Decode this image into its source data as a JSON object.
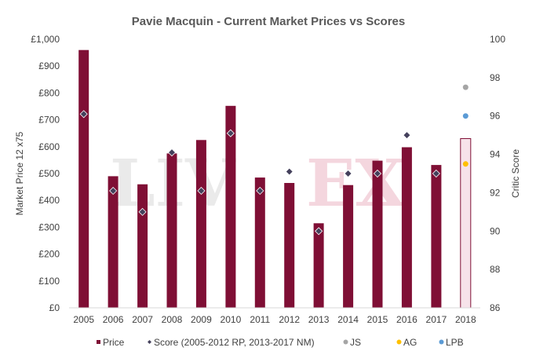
{
  "chart_data": {
    "type": "bar",
    "title": "Pavie Macquin - Current Market Prices vs Scores",
    "watermark": "LIV-EX",
    "categories": [
      "2005",
      "2006",
      "2007",
      "2008",
      "2009",
      "2010",
      "2011",
      "2012",
      "2013",
      "2014",
      "2015",
      "2016",
      "2017",
      "2018"
    ],
    "y_left": {
      "label": "Market Price 12 x75",
      "range": [
        0,
        1000
      ],
      "ticks": [
        "£0",
        "£100",
        "£200",
        "£300",
        "£400",
        "£500",
        "£600",
        "£700",
        "£800",
        "£900",
        "£1,000"
      ],
      "tick_values": [
        0,
        100,
        200,
        300,
        400,
        500,
        600,
        700,
        800,
        900,
        1000
      ]
    },
    "y_right": {
      "label": "Critic Score",
      "range": [
        86,
        100
      ],
      "ticks": [
        "86",
        "88",
        "90",
        "92",
        "94",
        "96",
        "98",
        "100"
      ],
      "tick_values": [
        86,
        88,
        90,
        92,
        94,
        96,
        98,
        100
      ]
    },
    "series": [
      {
        "name": "Price",
        "kind": "bar",
        "axis": "left",
        "color": "#7f0f35",
        "values": [
          960,
          490,
          460,
          575,
          625,
          752,
          485,
          465,
          315,
          457,
          548,
          598,
          532,
          630
        ],
        "highlight_last": {
          "fill": "#f7e3ea",
          "stroke": "#7f0f35"
        }
      },
      {
        "name": "Score (2005-2012 RP, 2013-2017 NM)",
        "kind": "marker",
        "marker": "diamond",
        "axis": "right",
        "color": "#44405c",
        "values": [
          96.1,
          92.1,
          91.0,
          94.1,
          92.1,
          95.1,
          92.1,
          93.1,
          90.0,
          93.0,
          93.0,
          95.0,
          93.0,
          null
        ]
      },
      {
        "name": "JS",
        "kind": "marker",
        "marker": "circle",
        "axis": "right",
        "color": "#a5a5a5",
        "values": [
          null,
          null,
          null,
          null,
          null,
          null,
          null,
          null,
          null,
          null,
          null,
          null,
          null,
          97.5
        ]
      },
      {
        "name": "AG",
        "kind": "marker",
        "marker": "circle",
        "axis": "right",
        "color": "#ffc000",
        "values": [
          null,
          null,
          null,
          null,
          null,
          null,
          null,
          null,
          null,
          null,
          null,
          null,
          null,
          93.5
        ]
      },
      {
        "name": "LPB",
        "kind": "marker",
        "marker": "circle",
        "axis": "right",
        "color": "#5b9bd5",
        "values": [
          null,
          null,
          null,
          null,
          null,
          null,
          null,
          null,
          null,
          null,
          null,
          null,
          null,
          96.0
        ]
      }
    ],
    "legend": {
      "position": "bottom"
    },
    "grid": false
  }
}
